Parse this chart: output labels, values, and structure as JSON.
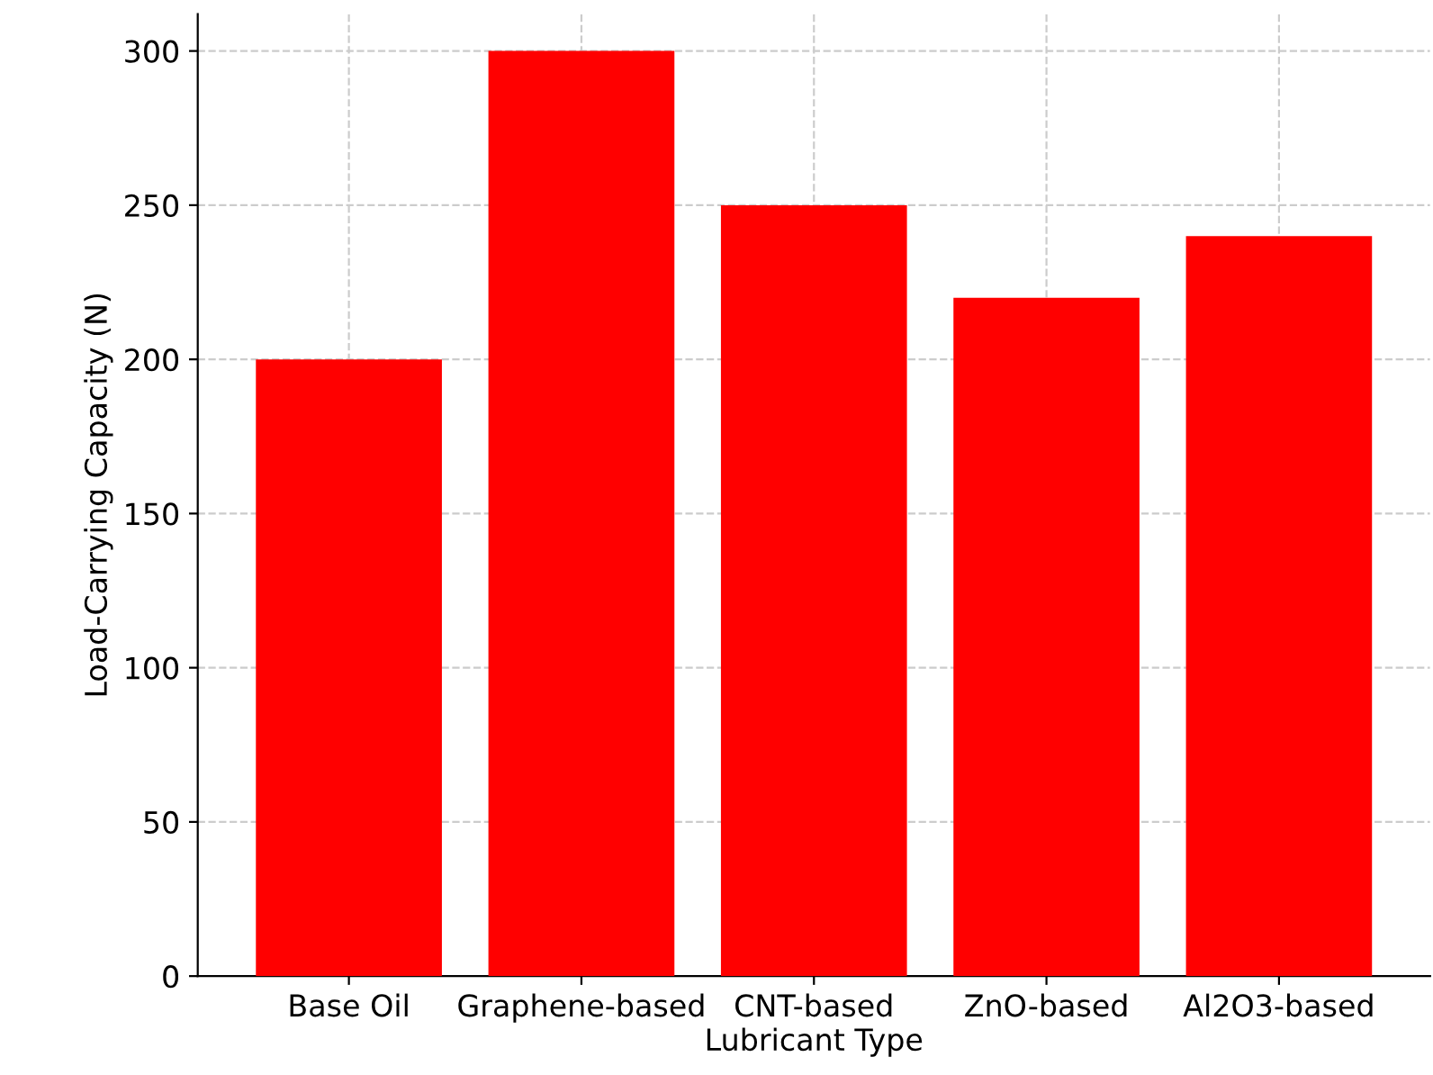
{
  "chart_data": {
    "type": "bar",
    "xlabel": "Lubricant Type",
    "ylabel": "Load-Carrying Capacity (N)",
    "categories": [
      "Base Oil",
      "Graphene-based",
      "CNT-based",
      "ZnO-based",
      "Al2O3-based"
    ],
    "values": [
      200,
      300,
      250,
      220,
      240
    ],
    "color": "#ff0000",
    "ylim": [
      0,
      312
    ],
    "yticks": [
      0,
      50,
      100,
      150,
      200,
      250,
      300
    ],
    "grid": true,
    "line_style": "dashed"
  }
}
